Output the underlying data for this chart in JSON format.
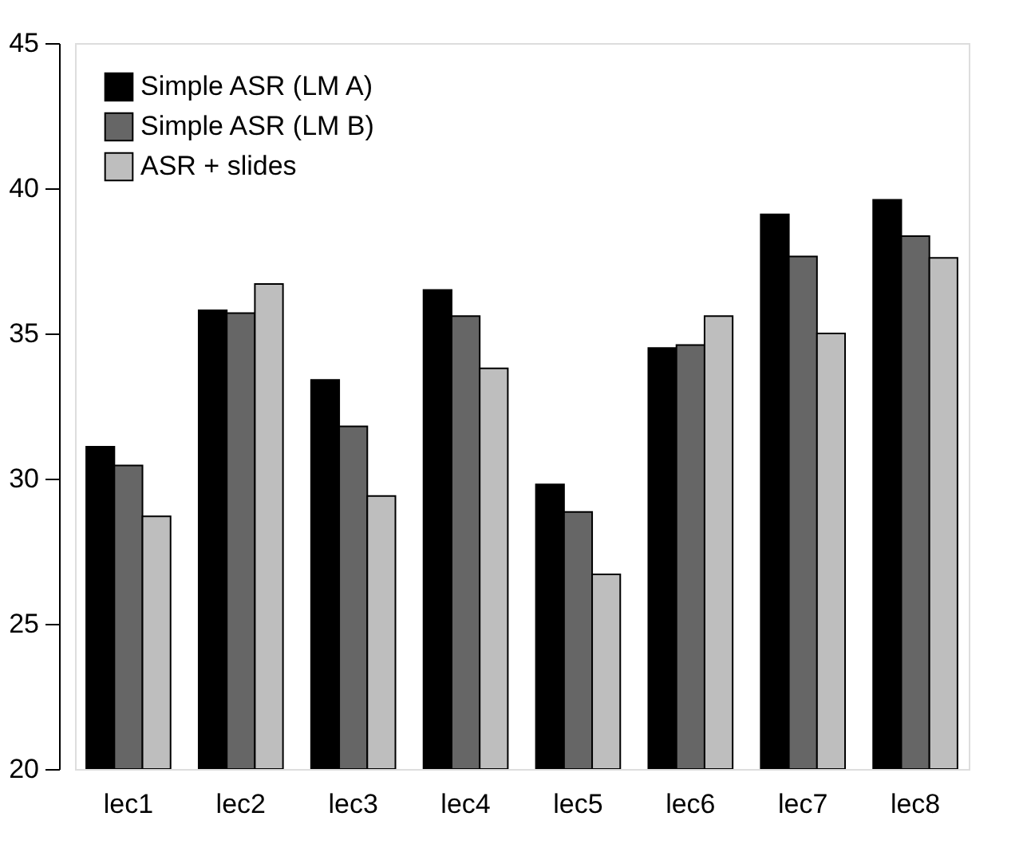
{
  "chart_data": {
    "type": "bar",
    "categories": [
      "lec1",
      "lec2",
      "lec3",
      "lec4",
      "lec5",
      "lec6",
      "lec7",
      "lec8"
    ],
    "series": [
      {
        "name": "Simple ASR (LM A)",
        "color": "#000000",
        "values": [
          31.1,
          35.8,
          33.4,
          36.5,
          29.8,
          34.5,
          39.1,
          39.6
        ]
      },
      {
        "name": "Simple ASR (LM B)",
        "color": "#666666",
        "values": [
          30.45,
          35.7,
          31.8,
          35.6,
          28.85,
          34.6,
          37.65,
          38.35
        ]
      },
      {
        "name": "ASR + slides",
        "color": "#bebebe",
        "values": [
          28.7,
          36.7,
          29.4,
          33.8,
          26.7,
          35.6,
          35.0,
          37.6
        ]
      }
    ],
    "ylim": [
      20,
      45
    ],
    "yticks": [
      20,
      25,
      30,
      35,
      40,
      45
    ],
    "grid": false,
    "legend": "top left"
  }
}
